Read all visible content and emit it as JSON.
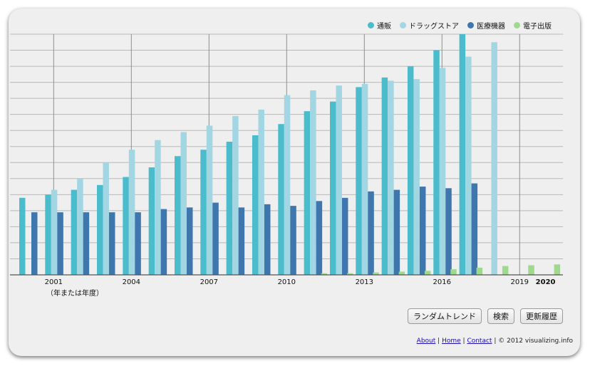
{
  "chart_data": {
    "type": "bar",
    "categories": [
      "2000",
      "2001",
      "2002",
      "2003",
      "2004",
      "2005",
      "2006",
      "2007",
      "2008",
      "2009",
      "2010",
      "2011",
      "2012",
      "2013",
      "2014",
      "2015",
      "2016",
      "2017",
      "2018",
      "2019",
      "2020"
    ],
    "tick_labels": [
      "2001",
      "2004",
      "2007",
      "2010",
      "2013",
      "2016",
      "2019",
      "2020"
    ],
    "xlabel_note": "（年または年度）",
    "grid": true,
    "legend_position": "top-right",
    "ylim": [
      0,
      15
    ],
    "series": [
      {
        "name": "通販",
        "color": "#4bbccc",
        "values": [
          4.8,
          5.0,
          5.3,
          5.6,
          6.1,
          6.7,
          7.4,
          7.8,
          8.3,
          8.7,
          9.4,
          10.2,
          10.8,
          11.7,
          12.3,
          13.0,
          14.0,
          15.0,
          null,
          null,
          null
        ]
      },
      {
        "name": "ドラッグストア",
        "color": "#a3d6e3",
        "values": [
          null,
          5.3,
          6.0,
          7.0,
          7.8,
          8.4,
          8.9,
          9.3,
          9.9,
          10.3,
          11.2,
          11.5,
          11.8,
          11.9,
          12.1,
          12.2,
          12.9,
          13.6,
          14.5,
          null,
          null
        ]
      },
      {
        "name": "医療機器",
        "color": "#3e76ad",
        "values": [
          3.9,
          3.9,
          3.9,
          3.9,
          3.9,
          4.1,
          4.2,
          4.5,
          4.2,
          4.4,
          4.3,
          4.6,
          4.8,
          5.2,
          5.3,
          5.5,
          5.4,
          5.7,
          null,
          null,
          null
        ]
      },
      {
        "name": "電子出版",
        "color": "#9fd98e",
        "values": [
          null,
          null,
          null,
          null,
          null,
          null,
          null,
          null,
          null,
          null,
          null,
          0.1,
          0.1,
          0.15,
          0.2,
          0.25,
          0.35,
          0.45,
          0.55,
          0.6,
          0.65
        ]
      }
    ]
  },
  "controls": {
    "random_trend": "ランダムトレンド",
    "search": "検索",
    "history": "更新履歴"
  },
  "footer": {
    "about": "About",
    "home": "Home",
    "contact": "Contact",
    "sep": "|",
    "copyright": "© 2012 visualizing.info"
  }
}
